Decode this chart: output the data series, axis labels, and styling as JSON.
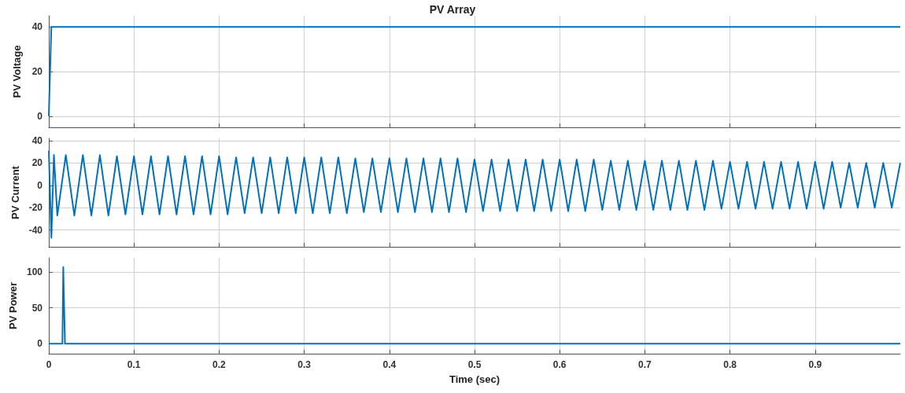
{
  "chart_data": [
    {
      "type": "line",
      "title": "PV Array",
      "ylabel": "PV Voltage",
      "xlim": [
        0,
        1
      ],
      "xticks": [
        0,
        0.1,
        0.2,
        0.3,
        0.4,
        0.5,
        0.6,
        0.7,
        0.8,
        0.9
      ],
      "ylim": [
        -5,
        45
      ],
      "yticks": [
        0,
        20,
        40
      ],
      "grid": true,
      "tick_labels": "y",
      "line_style": "solid",
      "series": [
        {
          "color": "#0072bd",
          "x": [
            0,
            0.003,
            1
          ],
          "values": [
            0,
            40,
            40
          ]
        }
      ]
    },
    {
      "type": "line",
      "ylabel": "PV Current",
      "xlim": [
        0,
        1
      ],
      "xticks": [
        0,
        0.1,
        0.2,
        0.3,
        0.4,
        0.5,
        0.6,
        0.7,
        0.8,
        0.9
      ],
      "ylim": [
        -55,
        42
      ],
      "yticks": [
        -40,
        -20,
        0,
        20,
        40
      ],
      "grid": true,
      "tick_labels": "y",
      "line_style": "solid",
      "series": [
        {
          "color": "#0072bd",
          "x": [
            0,
            0.003,
            0.006,
            0.01,
            0.02,
            0.03,
            0.04,
            0.05,
            0.06,
            0.07,
            0.08,
            0.09,
            0.1,
            0.11,
            0.12,
            0.13,
            0.14,
            0.15,
            0.16,
            0.17,
            0.18,
            0.19,
            0.2,
            0.21,
            0.22,
            0.23,
            0.24,
            0.25,
            0.26,
            0.27,
            0.28,
            0.29,
            0.3,
            0.31,
            0.32,
            0.33,
            0.34,
            0.35,
            0.36,
            0.37,
            0.38,
            0.39,
            0.4,
            0.41,
            0.42,
            0.43,
            0.44,
            0.45,
            0.46,
            0.47,
            0.48,
            0.49,
            0.5,
            0.51,
            0.52,
            0.53,
            0.54,
            0.55,
            0.56,
            0.57,
            0.58,
            0.59,
            0.6,
            0.61,
            0.62,
            0.63,
            0.64,
            0.65,
            0.66,
            0.67,
            0.68,
            0.69,
            0.7,
            0.71,
            0.72,
            0.73,
            0.74,
            0.75,
            0.76,
            0.77,
            0.78,
            0.79,
            0.8,
            0.81,
            0.82,
            0.83,
            0.84,
            0.85,
            0.86,
            0.87,
            0.88,
            0.89,
            0.9,
            0.91,
            0.92,
            0.93,
            0.94,
            0.95,
            0.96,
            0.97,
            0.98,
            0.99,
            1
          ],
          "values": [
            31,
            -47,
            27,
            -27,
            27,
            -27,
            27,
            -27,
            27,
            -27,
            26,
            -26,
            26,
            -26,
            26,
            -26,
            26,
            -26,
            26,
            -26,
            26,
            -26,
            26,
            -26,
            25,
            -25,
            25,
            -25,
            25,
            -25,
            25,
            -25,
            25,
            -25,
            25,
            -25,
            25,
            -25,
            24,
            -24,
            24,
            -24,
            24,
            -24,
            24,
            -24,
            24,
            -24,
            24,
            -24,
            24,
            -24,
            23,
            -23,
            23,
            -23,
            23,
            -23,
            23,
            -23,
            23,
            -23,
            23,
            -23,
            23,
            -23,
            23,
            -22,
            22,
            -22,
            22,
            -22,
            22,
            -22,
            22,
            -22,
            22,
            -22,
            22,
            -22,
            22,
            -21,
            21,
            -21,
            21,
            -21,
            21,
            -21,
            21,
            -21,
            21,
            -21,
            21,
            -21,
            21,
            -20,
            20,
            -20,
            20,
            -20,
            20,
            -20,
            20
          ]
        }
      ]
    },
    {
      "type": "line",
      "ylabel": "PV Power",
      "xlabel": "Time (sec)",
      "xlim": [
        0,
        1
      ],
      "xticks": [
        0,
        0.1,
        0.2,
        0.3,
        0.4,
        0.5,
        0.6,
        0.7,
        0.8,
        0.9
      ],
      "ylim": [
        -14,
        120
      ],
      "yticks": [
        0,
        50,
        100
      ],
      "grid": true,
      "line_style": "solid",
      "series": [
        {
          "color": "#0072bd",
          "x": [
            0,
            0.016,
            0.017,
            0.019,
            1
          ],
          "values": [
            0,
            0,
            107,
            0,
            0
          ]
        }
      ]
    }
  ]
}
